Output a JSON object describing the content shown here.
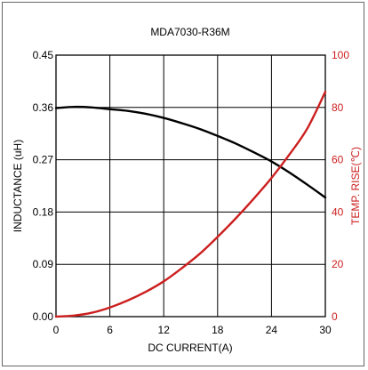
{
  "chart_data": {
    "type": "line",
    "title": "MDA7030-R36M",
    "xlabel": "DC CURRENT(A)",
    "ylabel_left": "INDUCTANCE (uH)",
    "ylabel_right": "TEMP. RISE(℃)",
    "xlim": [
      0,
      30
    ],
    "ylim_left": [
      0,
      0.45
    ],
    "ylim_right": [
      0,
      100
    ],
    "x_ticks": [
      "0",
      "6",
      "12",
      "18",
      "24",
      "30"
    ],
    "y_left_ticks": [
      "0.00",
      "0.09",
      "0.18",
      "0.27",
      "0.36",
      "0.45"
    ],
    "y_right_ticks": [
      "0",
      "20",
      "40",
      "60",
      "80",
      "100"
    ],
    "grid": true,
    "colors": {
      "left_axis": "#000000",
      "right_axis": "#cc1f1f",
      "grid": "#000000"
    },
    "series": [
      {
        "axis": "left",
        "color": "#000000",
        "x": [
          0,
          2,
          4,
          6,
          8,
          10,
          12,
          14,
          16,
          18,
          20,
          22,
          24,
          26,
          28,
          30
        ],
        "values": [
          0.359,
          0.361,
          0.36,
          0.357,
          0.354,
          0.349,
          0.342,
          0.333,
          0.323,
          0.311,
          0.298,
          0.283,
          0.267,
          0.248,
          0.227,
          0.205
        ]
      },
      {
        "axis": "right",
        "color": "#cc1f1f",
        "x": [
          0,
          2,
          4,
          6,
          8,
          10,
          12,
          14,
          16,
          18,
          20,
          22,
          24,
          26,
          28,
          30
        ],
        "values": [
          0,
          0.4,
          1.5,
          3.5,
          6.2,
          9.5,
          13.5,
          18.5,
          24,
          30.5,
          37.5,
          45,
          53,
          62,
          72,
          86
        ]
      }
    ]
  }
}
